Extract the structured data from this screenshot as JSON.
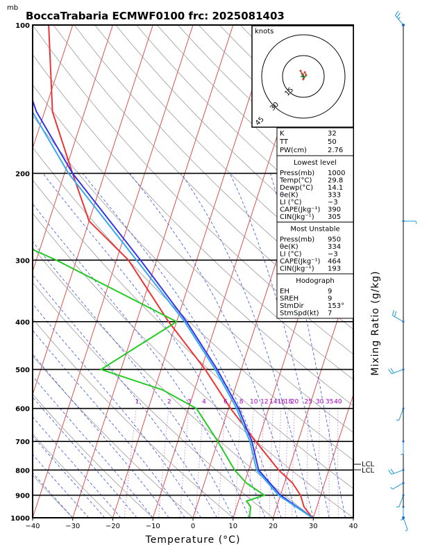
{
  "title": "BoccaTrabaria ECMWF0100  frc: 2025081403",
  "pressure_unit": "mb",
  "xlabel": "Temperature (°C)",
  "right_label": "Mixing Ratio (g/kg)",
  "hodograph": {
    "unit_label": "knots",
    "ring_labels": [
      "15",
      "30",
      "45"
    ]
  },
  "lcl_labels": [
    "LCL",
    "LCL"
  ],
  "indices": {
    "top": [
      {
        "label": "K",
        "value": "32"
      },
      {
        "label": "TT",
        "value": "50"
      },
      {
        "label": "PW(cm)",
        "value": "2.76"
      }
    ],
    "lowest": {
      "header": "Lowest level",
      "rows": [
        {
          "label": "Press(mb)",
          "value": "1000"
        },
        {
          "label": "Temp(°C)",
          "value": "29.8"
        },
        {
          "label": "Dewp(°C)",
          "value": "14.1"
        },
        {
          "label": "θe(K)",
          "value": "333"
        },
        {
          "label": "LI (°C)",
          "value": "−3"
        },
        {
          "label": "CAPE(Jkg⁻¹)",
          "value": "390"
        },
        {
          "label": "CIN(Jkg⁻¹)",
          "value": "305"
        }
      ]
    },
    "unstable": {
      "header": "Most Unstable",
      "rows": [
        {
          "label": "Press(mb)",
          "value": "950"
        },
        {
          "label": "θe(K)",
          "value": "334"
        },
        {
          "label": "LI (°C)",
          "value": "−3"
        },
        {
          "label": "CAPE(Jkg⁻¹)",
          "value": "464"
        },
        {
          "label": "CIN(Jkg⁻¹)",
          "value": "193"
        }
      ]
    },
    "hodo": {
      "header": "Hodograph",
      "rows": [
        {
          "label": "EH",
          "value": "9"
        },
        {
          "label": "SREH",
          "value": "9"
        },
        {
          "label": "StmDir",
          "value": "153°"
        },
        {
          "label": "StmSpd(kt)",
          "value": "7"
        }
      ]
    }
  },
  "chart_data": {
    "type": "line",
    "subtype": "skew-T log-p diagram",
    "x_ticks": [
      -40,
      -30,
      -20,
      -10,
      0,
      10,
      20,
      30,
      40
    ],
    "xlim": [
      -40,
      40
    ],
    "y_ticks": [
      100,
      200,
      300,
      400,
      500,
      600,
      700,
      800,
      900,
      1000
    ],
    "ylim": [
      1000,
      100
    ],
    "y_scale": "log",
    "mixing_ratio_labels": [
      "1",
      "2",
      "3",
      "4",
      "6",
      "8",
      "10",
      "12",
      "14",
      "16",
      "18",
      "20",
      "25",
      "30",
      "35",
      "40"
    ],
    "mixing_ratio_values": [
      1,
      2,
      3,
      4,
      6,
      8,
      10,
      12,
      14,
      16,
      18,
      20,
      25,
      30,
      35,
      40
    ],
    "series": [
      {
        "color": "#ee3333",
        "points": [
          [
            1000,
            29.8
          ],
          [
            950,
            26.8
          ],
          [
            900,
            25.0
          ],
          [
            850,
            22.0
          ],
          [
            800,
            17.5
          ],
          [
            700,
            9.5
          ],
          [
            600,
            0.5
          ],
          [
            500,
            -9.0
          ],
          [
            400,
            -22.0
          ],
          [
            300,
            -37.0
          ],
          [
            250,
            -50.0
          ],
          [
            200,
            -58.0
          ],
          [
            150,
            -68.0
          ],
          [
            100,
            -76.0
          ]
        ]
      },
      {
        "color": "#22cc22",
        "points": [
          [
            1000,
            14.1
          ],
          [
            950,
            13.5
          ],
          [
            925,
            12.0
          ],
          [
            900,
            16.0
          ],
          [
            850,
            10.5
          ],
          [
            800,
            6.5
          ],
          [
            700,
            0.0
          ],
          [
            600,
            -8.0
          ],
          [
            550,
            -18.0
          ],
          [
            500,
            -35.0
          ],
          [
            400,
            -20.0
          ],
          [
            300,
            -55.0
          ],
          [
            250,
            -80.0
          ],
          [
            200,
            -88.0
          ],
          [
            150,
            -95.0
          ],
          [
            100,
            -100.0
          ]
        ]
      },
      {
        "color": "#3333ee",
        "points": [
          [
            1000,
            29.8
          ],
          [
            900,
            20.0
          ],
          [
            800,
            12.5
          ],
          [
            700,
            8.5
          ],
          [
            600,
            2.5
          ],
          [
            500,
            -6.0
          ],
          [
            400,
            -17.5
          ],
          [
            300,
            -34.0
          ],
          [
            200,
            -58.0
          ],
          [
            150,
            -72.0
          ],
          [
            110,
            -83.0
          ]
        ]
      },
      {
        "color": "#33aaee",
        "points": [
          [
            1000,
            29.8
          ],
          [
            900,
            19.5
          ],
          [
            800,
            12.0
          ],
          [
            700,
            8.0
          ],
          [
            600,
            2.0
          ],
          [
            500,
            -6.5
          ],
          [
            400,
            -18.0
          ],
          [
            300,
            -35.0
          ],
          [
            200,
            -59.0
          ],
          [
            150,
            -73.0
          ],
          [
            110,
            -84.0
          ]
        ]
      }
    ],
    "hodograph_points": [
      [
        -2,
        4
      ],
      [
        -1,
        2
      ],
      [
        0,
        -2
      ],
      [
        2,
        1
      ],
      [
        1,
        3
      ]
    ],
    "wind_barbs": [
      {
        "p": 100,
        "dir": 320,
        "spd": 15
      },
      {
        "p": 250,
        "dir": 90,
        "spd": 5
      },
      {
        "p": 400,
        "dir": 300,
        "spd": 10
      },
      {
        "p": 500,
        "dir": 250,
        "spd": 10
      },
      {
        "p": 600,
        "dir": 200,
        "spd": 5
      },
      {
        "p": 700,
        "dir": 180,
        "spd": 5
      },
      {
        "p": 800,
        "dir": 250,
        "spd": 10
      },
      {
        "p": 850,
        "dir": 240,
        "spd": 5
      },
      {
        "p": 900,
        "dir": 200,
        "spd": 5
      },
      {
        "p": 950,
        "dir": 180,
        "spd": 5
      },
      {
        "p": 1000,
        "dir": 160,
        "spd": 5
      }
    ]
  }
}
